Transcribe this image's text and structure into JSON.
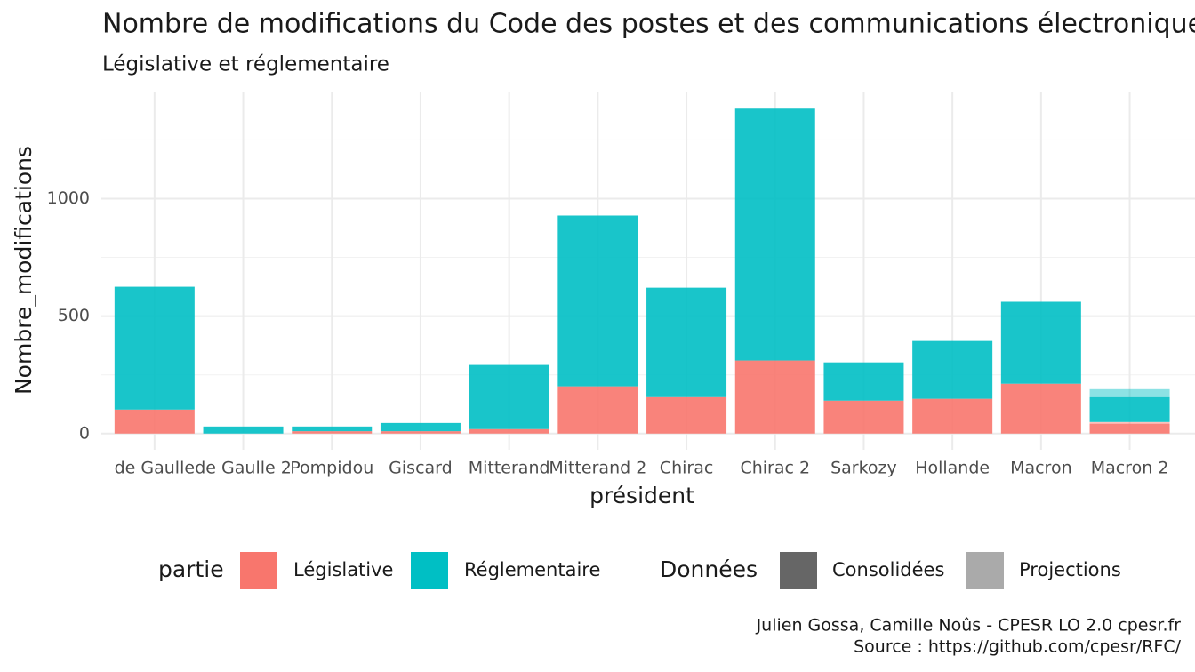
{
  "chart_data": {
    "type": "stacked_bar",
    "title": "Nombre de modifications du Code des postes et des communications électroniques",
    "subtitle": "Législative et réglementaire",
    "x_label": "président",
    "y_label": "Nombre_modifications",
    "categories": [
      "de Gaulle",
      "de Gaulle 2",
      "Pompidou",
      "Giscard",
      "Mitterand",
      "Mitterand 2",
      "Chirac",
      "Chirac 2",
      "Sarkozy",
      "Hollande",
      "Macron",
      "Macron 2"
    ],
    "series": [
      {
        "name": "Législative",
        "color": "#F8766D",
        "values": [
          102,
          0,
          10,
          10,
          19,
          201,
          155,
          311,
          140,
          148,
          212,
          42
        ],
        "projections": [
          null,
          null,
          null,
          null,
          null,
          null,
          null,
          null,
          null,
          null,
          null,
          7
        ]
      },
      {
        "name": "Réglementaire",
        "color": "#00BFC4",
        "values": [
          523,
          30,
          20,
          35,
          273,
          727,
          466,
          1072,
          163,
          246,
          349,
          106
        ],
        "projections": [
          null,
          null,
          null,
          null,
          null,
          null,
          null,
          null,
          null,
          null,
          null,
          34
        ]
      }
    ],
    "legend_title": "partie",
    "data_legend": {
      "title": "Données",
      "entries": [
        {
          "name": "Consolidées",
          "color": "#666666"
        },
        {
          "name": "Projections",
          "color": "#aaaaaa"
        }
      ]
    },
    "ylim": [
      -69,
      1452
    ],
    "yticks": [
      0,
      500,
      1000
    ],
    "minor_yticks": [
      250,
      750,
      1250
    ],
    "grid": true,
    "caption": [
      "Julien Gossa, Camille Noûs - CPESR LO 2.0 cpesr.fr",
      "Source : https://github.com/cpesr/RFC/"
    ]
  }
}
